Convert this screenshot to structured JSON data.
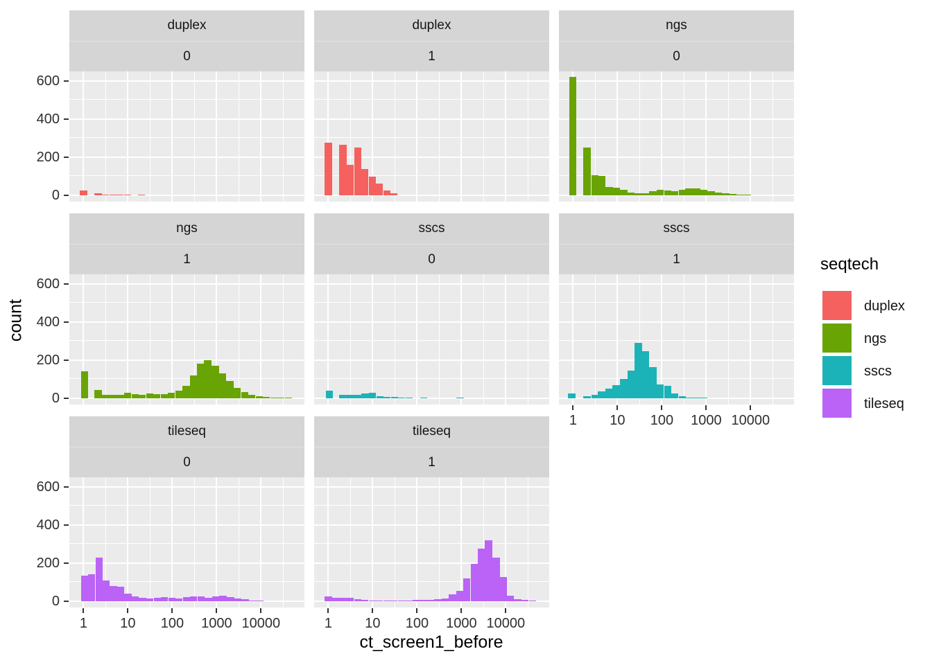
{
  "figure": {
    "x_axis_title": "ct_screen1_before",
    "y_axis_title": "count",
    "background_color": "#ffffff",
    "panel_color": "#ebebeb",
    "strip_color": "#d5d5d5",
    "gridline_color": "#ffffff"
  },
  "legend": {
    "title": "seqtech",
    "entries": [
      {
        "label": "duplex",
        "color": "#f4615e"
      },
      {
        "label": "ngs",
        "color": "#69a405"
      },
      {
        "label": "sscs",
        "color": "#1bb3b7"
      },
      {
        "label": "tileseq",
        "color": "#ba63f6"
      }
    ]
  },
  "chart_data": {
    "type": "bar",
    "subtype": "faceted-histogram",
    "x_scale": "log10",
    "xlabel": "ct_screen1_before",
    "ylabel": "count",
    "x_ticks": [
      1,
      10,
      100,
      1000,
      10000
    ],
    "y_ticks": [
      0,
      200,
      400,
      600
    ],
    "x_range_log10": [
      -0.32,
      4.98
    ],
    "y_range": [
      0,
      650
    ],
    "grid": true,
    "legend_position": "right",
    "legend_title": "seqtech",
    "bin_width_log10": 0.164,
    "facet_variables": [
      "seqtech",
      "screen_flag"
    ],
    "series_colors": {
      "duplex": "#f4615e",
      "ngs": "#69a405",
      "sscs": "#1bb3b7",
      "tileseq": "#ba63f6"
    },
    "facets": [
      {
        "seqtech": "duplex",
        "screen": "0",
        "color": "#f4615e",
        "bars": [
          [
            -0.08,
            25
          ],
          [
            0.25,
            12
          ],
          [
            0.41,
            5
          ],
          [
            0.58,
            4
          ],
          [
            0.74,
            3
          ],
          [
            0.91,
            2
          ],
          [
            1.22,
            4
          ]
        ]
      },
      {
        "seqtech": "duplex",
        "screen": "1",
        "color": "#f4615e",
        "bars": [
          [
            -0.08,
            275
          ],
          [
            0.25,
            265
          ],
          [
            0.41,
            160
          ],
          [
            0.58,
            250
          ],
          [
            0.74,
            138
          ],
          [
            0.91,
            97
          ],
          [
            1.07,
            60
          ],
          [
            1.24,
            25
          ],
          [
            1.4,
            10
          ]
        ]
      },
      {
        "seqtech": "ngs",
        "screen": "0",
        "color": "#69a405",
        "bars": [
          [
            -0.09,
            620
          ],
          [
            0.23,
            250
          ],
          [
            0.41,
            104
          ],
          [
            0.56,
            100
          ],
          [
            0.73,
            42
          ],
          [
            0.89,
            40
          ],
          [
            1.06,
            28
          ],
          [
            1.22,
            16
          ],
          [
            1.39,
            11
          ],
          [
            1.55,
            12
          ],
          [
            1.72,
            22
          ],
          [
            1.88,
            28
          ],
          [
            2.05,
            25
          ],
          [
            2.2,
            22
          ],
          [
            2.38,
            30
          ],
          [
            2.53,
            35
          ],
          [
            2.7,
            38
          ],
          [
            2.86,
            30
          ],
          [
            3.03,
            22
          ],
          [
            3.19,
            15
          ],
          [
            3.36,
            10
          ],
          [
            3.52,
            7
          ],
          [
            3.69,
            5
          ],
          [
            3.84,
            3
          ]
        ]
      },
      {
        "seqtech": "ngs",
        "screen": "1",
        "color": "#69a405",
        "bars": [
          [
            -0.06,
            140
          ],
          [
            0.25,
            45
          ],
          [
            0.42,
            20
          ],
          [
            0.58,
            18
          ],
          [
            0.75,
            18
          ],
          [
            0.91,
            28
          ],
          [
            1.08,
            22
          ],
          [
            1.24,
            20
          ],
          [
            1.41,
            25
          ],
          [
            1.57,
            22
          ],
          [
            1.74,
            22
          ],
          [
            1.9,
            28
          ],
          [
            2.07,
            40
          ],
          [
            2.23,
            65
          ],
          [
            2.4,
            120
          ],
          [
            2.56,
            180
          ],
          [
            2.72,
            200
          ],
          [
            2.89,
            170
          ],
          [
            3.05,
            130
          ],
          [
            3.22,
            90
          ],
          [
            3.38,
            55
          ],
          [
            3.55,
            32
          ],
          [
            3.71,
            20
          ],
          [
            3.88,
            12
          ],
          [
            4.04,
            8
          ],
          [
            4.21,
            5
          ],
          [
            4.37,
            4
          ],
          [
            4.54,
            3
          ]
        ]
      },
      {
        "seqtech": "sscs",
        "screen": "0",
        "color": "#1bb3b7",
        "bars": [
          [
            -0.06,
            40
          ],
          [
            0.25,
            18
          ],
          [
            0.42,
            20
          ],
          [
            0.58,
            18
          ],
          [
            0.75,
            25
          ],
          [
            0.91,
            28
          ],
          [
            1.08,
            12
          ],
          [
            1.24,
            8
          ],
          [
            1.41,
            6
          ],
          [
            1.57,
            5
          ],
          [
            1.74,
            4
          ],
          [
            2.07,
            4
          ],
          [
            2.89,
            3
          ]
        ]
      },
      {
        "seqtech": "sscs",
        "screen": "1",
        "color": "#1bb3b7",
        "bars": [
          [
            -0.11,
            25
          ],
          [
            0.23,
            12
          ],
          [
            0.41,
            18
          ],
          [
            0.56,
            35
          ],
          [
            0.73,
            50
          ],
          [
            0.89,
            70
          ],
          [
            1.06,
            100
          ],
          [
            1.22,
            145
          ],
          [
            1.39,
            290
          ],
          [
            1.55,
            245
          ],
          [
            1.72,
            165
          ],
          [
            1.88,
            72
          ],
          [
            2.05,
            65
          ],
          [
            2.2,
            25
          ],
          [
            2.38,
            10
          ],
          [
            2.53,
            5
          ],
          [
            2.7,
            4
          ],
          [
            2.86,
            3
          ]
        ]
      },
      {
        "seqtech": "tileseq",
        "screen": "0",
        "color": "#ba63f6",
        "bars": [
          [
            -0.06,
            135
          ],
          [
            0.1,
            140
          ],
          [
            0.27,
            230
          ],
          [
            0.42,
            110
          ],
          [
            0.59,
            80
          ],
          [
            0.75,
            78
          ],
          [
            0.92,
            40
          ],
          [
            1.08,
            25
          ],
          [
            1.25,
            18
          ],
          [
            1.41,
            15
          ],
          [
            1.58,
            18
          ],
          [
            1.74,
            22
          ],
          [
            1.91,
            20
          ],
          [
            2.07,
            16
          ],
          [
            2.24,
            22
          ],
          [
            2.4,
            26
          ],
          [
            2.57,
            24
          ],
          [
            2.73,
            20
          ],
          [
            2.9,
            26
          ],
          [
            3.06,
            28
          ],
          [
            3.23,
            22
          ],
          [
            3.39,
            15
          ],
          [
            3.56,
            10
          ],
          [
            3.72,
            5
          ],
          [
            3.89,
            3
          ]
        ]
      },
      {
        "seqtech": "tileseq",
        "screen": "1",
        "color": "#ba63f6",
        "bars": [
          [
            -0.08,
            25
          ],
          [
            0.08,
            20
          ],
          [
            0.25,
            18
          ],
          [
            0.41,
            20
          ],
          [
            0.58,
            12
          ],
          [
            0.74,
            8
          ],
          [
            0.91,
            5
          ],
          [
            1.07,
            3
          ],
          [
            1.24,
            3
          ],
          [
            1.4,
            3
          ],
          [
            1.57,
            3
          ],
          [
            1.73,
            4
          ],
          [
            1.9,
            6
          ],
          [
            2.06,
            6
          ],
          [
            2.23,
            8
          ],
          [
            2.39,
            10
          ],
          [
            2.55,
            15
          ],
          [
            2.72,
            35
          ],
          [
            2.88,
            55
          ],
          [
            3.04,
            120
          ],
          [
            3.21,
            195
          ],
          [
            3.37,
            277
          ],
          [
            3.53,
            320
          ],
          [
            3.7,
            230
          ],
          [
            3.86,
            128
          ],
          [
            4.02,
            30
          ],
          [
            4.19,
            12
          ],
          [
            4.35,
            6
          ],
          [
            4.52,
            3
          ]
        ]
      }
    ]
  }
}
